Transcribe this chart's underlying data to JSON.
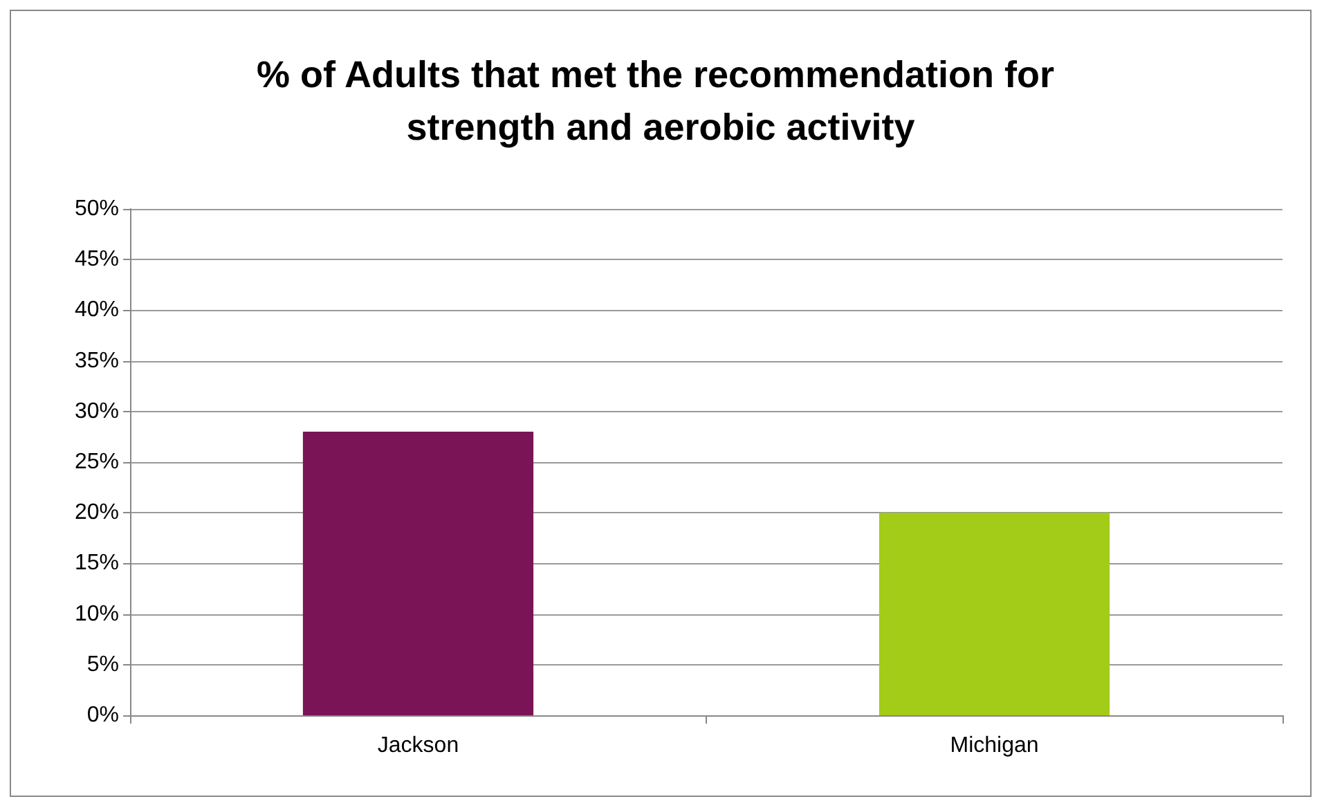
{
  "chart_data": {
    "type": "bar",
    "title": "% of Adults that met the recommendation for strength and aerobic activity",
    "categories": [
      "Jackson",
      "Michigan"
    ],
    "values": [
      28,
      20
    ],
    "colors": [
      "#7a1456",
      "#a2cc17"
    ],
    "ylim": [
      0,
      50
    ],
    "yticks": [
      {
        "value": 0,
        "label": "0%"
      },
      {
        "value": 5,
        "label": "5%"
      },
      {
        "value": 10,
        "label": "10%"
      },
      {
        "value": 15,
        "label": "15%"
      },
      {
        "value": 20,
        "label": "20%"
      },
      {
        "value": 25,
        "label": "25%"
      },
      {
        "value": 30,
        "label": "30%"
      },
      {
        "value": 35,
        "label": "35%"
      },
      {
        "value": 40,
        "label": "40%"
      },
      {
        "value": 45,
        "label": "45%"
      },
      {
        "value": 50,
        "label": "50%"
      }
    ],
    "grid": "y"
  }
}
